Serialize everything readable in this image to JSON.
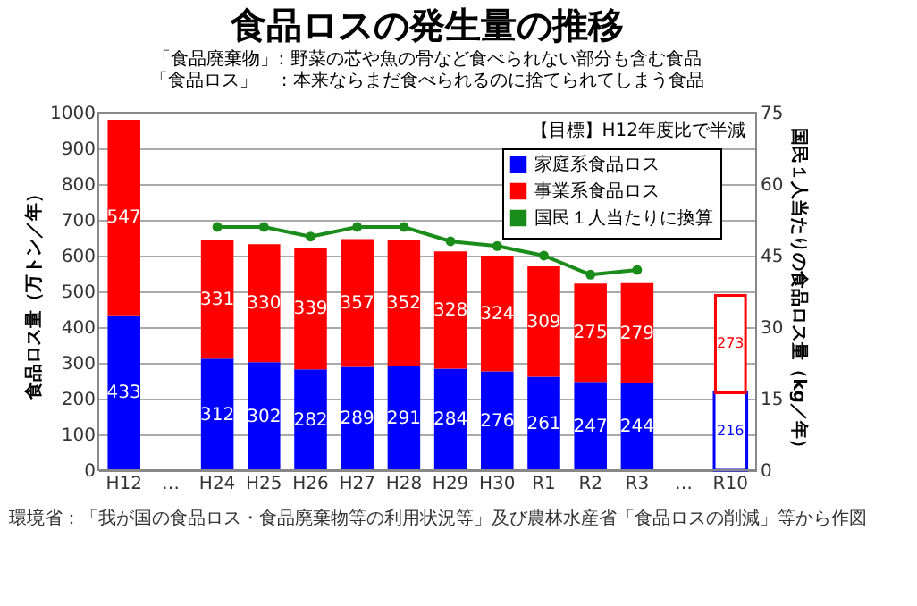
{
  "chart_data": {
    "type": "bar",
    "title": "食品ロスの発生量の推移",
    "subtitle": [
      "「食品廃棄物」: 野菜の芯や魚の骨など食べられない部分も含む食品",
      "「食品ロス」　 : 本来ならまだ食べられるのに捨てられてしまう食品"
    ],
    "categories": [
      "H12",
      "…",
      "H24",
      "H25",
      "H26",
      "H27",
      "H28",
      "H29",
      "H30",
      "R1",
      "R2",
      "R3",
      "…",
      "R10"
    ],
    "series": [
      {
        "name": "家庭系食品ロス",
        "color": "#0000ff",
        "values": [
          433,
          null,
          312,
          302,
          282,
          289,
          291,
          284,
          276,
          261,
          247,
          244,
          null,
          null
        ],
        "value_labels": [
          "433",
          null,
          "312",
          "302",
          "282",
          "289",
          "291",
          "284",
          "276",
          "261",
          "247",
          "244",
          null,
          null
        ]
      },
      {
        "name": "事業系食品ロス",
        "color": "#ff0000",
        "values": [
          547,
          null,
          331,
          330,
          339,
          357,
          352,
          328,
          324,
          309,
          275,
          279,
          null,
          null
        ],
        "value_labels": [
          "547",
          null,
          "331",
          "330",
          "339",
          "357",
          "352",
          "328",
          "324",
          "309",
          "275",
          "279",
          null,
          null
        ]
      },
      {
        "color": "#0000ff",
        "values": [
          null,
          null,
          null,
          null,
          null,
          null,
          null,
          null,
          null,
          null,
          null,
          null,
          null,
          216
        ],
        "value_labels": [
          null,
          null,
          null,
          null,
          null,
          null,
          null,
          null,
          null,
          null,
          null,
          null,
          null,
          "216"
        ]
      },
      {
        "color": "#ff0000",
        "values": [
          null,
          null,
          null,
          null,
          null,
          null,
          null,
          null,
          null,
          null,
          null,
          null,
          null,
          273
        ],
        "value_labels": [
          null,
          null,
          null,
          null,
          null,
          null,
          null,
          null,
          null,
          null,
          null,
          null,
          null,
          "273"
        ]
      },
      {
        "name": "国民１人当たりに換算",
        "type": "line",
        "axis": "y2",
        "color": "#1a8c1a",
        "marker": "circle",
        "line_style": "solid",
        "values": [
          null,
          null,
          51,
          51,
          49,
          51,
          51,
          48,
          47,
          45,
          41,
          42,
          null,
          null
        ]
      }
    ],
    "stacked": true,
    "ylabel": "食品ロス量（万トン／年）",
    "y2label": "国民１人当たりの食品ロス量（kg／年）",
    "ylim": [
      0,
      1000
    ],
    "yticks": [
      0,
      100,
      200,
      300,
      400,
      500,
      600,
      700,
      800,
      900,
      {
        "value": 1000,
        "label": "1000"
      }
    ],
    "y2lim": [
      0,
      75
    ],
    "y2ticks": [
      0,
      15,
      30,
      45,
      60,
      75
    ],
    "grid": "y",
    "legend": "top right",
    "annotations": [
      "【目標】H12年度比で半減",
      "環境省：「我が国の食品ロス・食品廃棄物等の利用状況等」及び農林水産省「食品ロスの削減」等から作図"
    ]
  }
}
